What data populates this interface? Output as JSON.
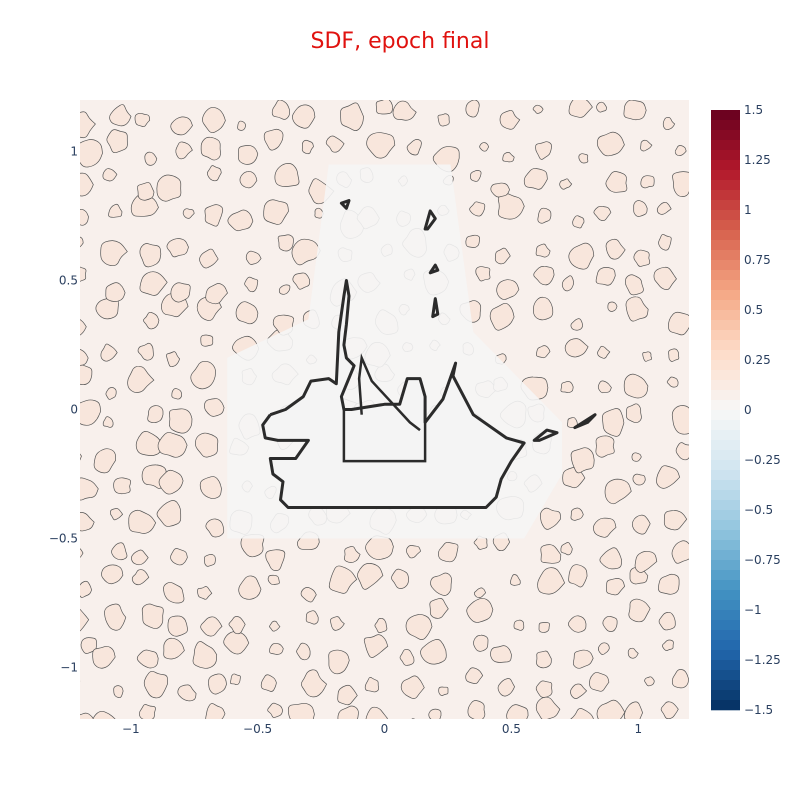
{
  "chart_data": {
    "type": "heatmap",
    "title": "SDF, epoch final",
    "title_color": "#e0120f",
    "xlabel": "",
    "ylabel": "",
    "xlim": [
      -1.2,
      1.2
    ],
    "ylim": [
      -1.2,
      1.2
    ],
    "x_ticks": [
      -1,
      -0.5,
      0,
      0.5,
      1
    ],
    "x_tick_labels": [
      "−1",
      "−0.5",
      "0",
      "0.5",
      "1"
    ],
    "y_ticks": [
      1,
      0.5,
      0,
      -0.5,
      -1
    ],
    "y_tick_labels": [
      "1",
      "0.5",
      "0",
      "−0.5",
      "−1"
    ],
    "colorbar": {
      "range": [
        -1.5,
        1.5
      ],
      "ticks": [
        1.5,
        1.25,
        1,
        0.75,
        0.5,
        0.25,
        0,
        -0.25,
        -0.5,
        -0.75,
        -1,
        -1.25,
        -1.5
      ],
      "tick_labels": [
        "1.5",
        "1.25",
        "1",
        "0.75",
        "0.5",
        "0.25",
        "0",
        "−0.25",
        "−0.5",
        "−0.75",
        "−1",
        "−1.25",
        "−1.5"
      ],
      "colorscale": [
        "#053061",
        "#2166ac",
        "#4393c3",
        "#92c5de",
        "#d1e5f0",
        "#f7f7f7",
        "#fddbc7",
        "#f4a582",
        "#d6604d",
        "#b2182b",
        "#67001f"
      ]
    },
    "background_value_color": "#f8f0ec",
    "near_zero_color": "#f5f5f5",
    "zero_level_color": "#2b2b2b",
    "contour_color": "#555555",
    "grid": false,
    "legend": "none",
    "shape_outline": [
      [
        -0.45,
        -0.02
      ],
      [
        -0.48,
        -0.06
      ],
      [
        -0.47,
        -0.11
      ],
      [
        -0.42,
        -0.12
      ],
      [
        -0.3,
        -0.12
      ],
      [
        -0.35,
        -0.19
      ],
      [
        -0.45,
        -0.19
      ],
      [
        -0.44,
        -0.25
      ],
      [
        -0.4,
        -0.28
      ],
      [
        -0.41,
        -0.35
      ],
      [
        -0.38,
        -0.38
      ],
      [
        0.0,
        -0.38
      ],
      [
        0.4,
        -0.38
      ],
      [
        0.44,
        -0.34
      ],
      [
        0.46,
        -0.27
      ],
      [
        0.5,
        -0.2
      ],
      [
        0.55,
        -0.13
      ],
      [
        0.48,
        -0.11
      ],
      [
        0.35,
        -0.02
      ],
      [
        0.27,
        0.13
      ],
      [
        0.28,
        0.18
      ],
      [
        0.23,
        0.04
      ],
      [
        0.16,
        -0.05
      ],
      [
        0.16,
        0.05
      ],
      [
        0.14,
        0.12
      ],
      [
        0.11,
        0.12
      ],
      [
        0.09,
        0.12
      ],
      [
        0.06,
        0.02
      ],
      [
        0.0,
        0.02
      ],
      [
        -0.13,
        0.0
      ],
      [
        -0.16,
        0.0
      ],
      [
        -0.17,
        0.05
      ],
      [
        -0.12,
        0.17
      ],
      [
        -0.15,
        0.2
      ],
      [
        -0.16,
        0.25
      ],
      [
        -0.15,
        0.33
      ],
      [
        -0.14,
        0.44
      ],
      [
        -0.15,
        0.5
      ],
      [
        -0.16,
        0.44
      ],
      [
        -0.18,
        0.3
      ],
      [
        -0.19,
        0.1
      ],
      [
        -0.22,
        0.12
      ],
      [
        -0.29,
        0.11
      ],
      [
        -0.32,
        0.05
      ],
      [
        -0.39,
        0.0
      ],
      [
        -0.45,
        -0.02
      ]
    ],
    "zero_level_blobs": [
      [
        [
          -0.15,
          0.78
        ],
        [
          -0.17,
          0.8
        ],
        [
          -0.14,
          0.81
        ],
        [
          -0.15,
          0.78
        ]
      ],
      [
        [
          0.16,
          0.7
        ],
        [
          0.18,
          0.77
        ],
        [
          0.2,
          0.74
        ],
        [
          0.17,
          0.7
        ]
      ],
      [
        [
          0.18,
          0.53
        ],
        [
          0.2,
          0.56
        ],
        [
          0.21,
          0.54
        ],
        [
          0.18,
          0.53
        ]
      ],
      [
        [
          0.19,
          0.36
        ],
        [
          0.2,
          0.43
        ],
        [
          0.21,
          0.37
        ],
        [
          0.19,
          0.36
        ]
      ],
      [
        [
          0.59,
          -0.12
        ],
        [
          0.64,
          -0.08
        ],
        [
          0.68,
          -0.09
        ],
        [
          0.61,
          -0.12
        ]
      ],
      [
        [
          0.75,
          -0.07
        ],
        [
          0.83,
          -0.02
        ],
        [
          0.8,
          -0.05
        ],
        [
          0.75,
          -0.07
        ]
      ]
    ]
  }
}
